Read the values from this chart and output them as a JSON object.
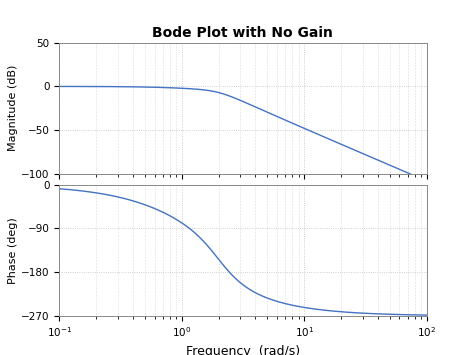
{
  "title": "Bode Plot with No Gain",
  "title_fontsize": 10,
  "xlabel": "Frequency  (rad/s)",
  "ylabel_mag": "Magnitude (dB)",
  "ylabel_phase": "Phase (deg)",
  "freq_range": [
    0.1,
    100
  ],
  "mag_ylim": [
    -100,
    50
  ],
  "mag_yticks": [
    50,
    0,
    -50,
    -100
  ],
  "phase_ylim": [
    -270,
    0
  ],
  "phase_yticks": [
    0,
    -90,
    -180,
    -270
  ],
  "line_color": "#4472c4",
  "line_width": 1.0,
  "grid_color": "#c0c0c0",
  "grid_linestyle": ":",
  "background_color": "#ffffff",
  "axes_background": "#ffffff",
  "omega_n": 2.0,
  "zeta": 0.5,
  "omega_extra": 1.0,
  "transfer_fn_order": 3
}
